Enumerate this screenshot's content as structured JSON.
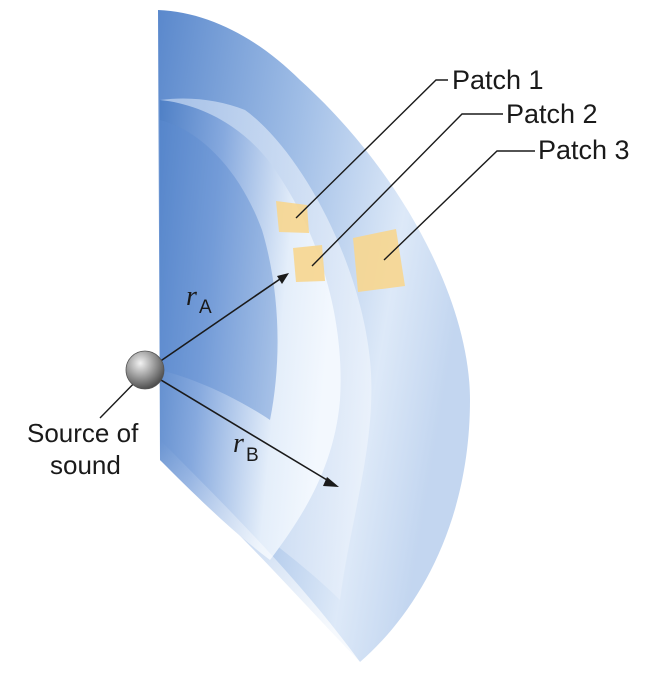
{
  "labels": {
    "patch1": "Patch 1",
    "patch2": "Patch 2",
    "patch3": "Patch 3",
    "source_line1": "Source of",
    "source_line2": "sound",
    "r_a": "r",
    "r_a_sub": "A",
    "r_b": "r",
    "r_b_sub": "B"
  },
  "colors": {
    "shell_dark": "#5f8fd0",
    "shell_light": "#e9f1fb",
    "patch": "#f7d68f",
    "source": "#8a8a8a",
    "ink": "#1a1a1a"
  }
}
